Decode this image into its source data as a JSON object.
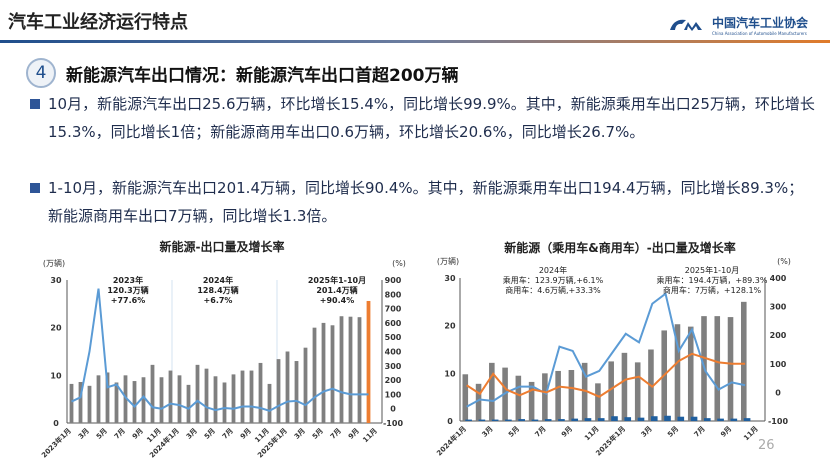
{
  "header": {
    "title": "汽车工业经济运行特点",
    "logo_cn": "中国汽车工业协会",
    "logo_en": "China Association of Automobile Manufacturers",
    "logo_mark": "CM"
  },
  "section": {
    "number": "4",
    "heading": "新能源汽车出口情况：新能源汽车出口首超200万辆"
  },
  "bullets": [
    "10月，新能源汽车出口25.6万辆，环比增长15.4%，同比增长99.9%。其中，新能源乘用车出口25万辆，环比增长15.3%，同比增长1倍；新能源商用车出口0.6万辆，环比增长20.6%，同比增长26.7%。",
    "1-10月，新能源汽车出口201.4万辆，同比增长90.4%。其中，新能源乘用车出口194.4万辆，同比增长89.3%；新能源商用车出口7万辆，同比增长1.3倍。"
  ],
  "page_number": "26",
  "colors": {
    "bar": "#7f7f7f",
    "highlight_bar": "#ed7d31",
    "line_blue": "#5b9bd5",
    "line_orange": "#ed7d31",
    "small_bar": "#1f5f9f",
    "accent": "#1f4e8c"
  },
  "chart_data": [
    {
      "type": "bar+line",
      "title": "新能源-出口量及增长率",
      "ylabel": "(万辆)",
      "y2label": "(%)",
      "ylim": [
        0,
        30
      ],
      "y2lim": [
        -100,
        900
      ],
      "yticks": [
        "0",
        "10",
        "20",
        "30"
      ],
      "y2ticks": [
        "-100",
        "0",
        "100",
        "200",
        "300",
        "400",
        "500",
        "600",
        "700",
        "800",
        "900"
      ],
      "xticks": [
        "2023年1月",
        "3月",
        "5月",
        "7月",
        "9月",
        "11月",
        "2024年1月",
        "3月",
        "5月",
        "7月",
        "9月",
        "11月",
        "2025年1月",
        "3月",
        "5月",
        "7月",
        "9月",
        "11月"
      ],
      "categories_start": "2023年1月",
      "categories_end": "2025年10月",
      "series": [
        {
          "type": "bar",
          "axis": "left",
          "values": [
            8.2,
            8.6,
            7.8,
            10,
            10.6,
            8.5,
            10,
            8.8,
            9.6,
            12.2,
            9.6,
            11,
            10,
            8,
            12.2,
            11.4,
            9.8,
            8.5,
            10.2,
            11,
            11,
            12.6,
            8.2,
            13.4,
            15,
            13,
            15.8,
            20,
            21,
            20.5,
            22.4,
            22.3,
            22.2,
            25.6
          ]
        },
        {
          "type": "line",
          "axis": "right",
          "values": [
            50,
            80,
            400,
            840,
            150,
            170,
            80,
            15,
            85,
            10,
            0,
            35,
            25,
            0,
            55,
            10,
            -10,
            5,
            0,
            15,
            15,
            5,
            -15,
            20,
            50,
            55,
            25,
            80,
            120,
            140,
            115,
            100,
            100,
            100
          ]
        }
      ],
      "annotations": [
        {
          "lines": [
            "2023年",
            "120.3万辆",
            "+77.6%"
          ]
        },
        {
          "lines": [
            "2024年",
            "128.4万辆",
            "+6.7%"
          ]
        },
        {
          "lines": [
            "2025年1-10月",
            "201.4万辆",
            "+90.4%"
          ]
        }
      ]
    },
    {
      "type": "bar+line",
      "title": "新能源（乘用车&商用车）-出口量及增长率",
      "ylabel": "(万辆)",
      "y2label": "(%)",
      "ylim": [
        0,
        30
      ],
      "y2lim": [
        -100,
        400
      ],
      "yticks": [
        "0",
        "10",
        "20",
        "30"
      ],
      "y2ticks": [
        "-100",
        "0",
        "100",
        "200",
        "300",
        "400"
      ],
      "xticks": [
        "2024年1月",
        "3月",
        "5月",
        "7月",
        "9月",
        "11月",
        "2025年1月",
        "3月",
        "5月",
        "7月",
        "9月",
        "11月"
      ],
      "categories_start": "2024年1月",
      "categories_end": "2025年10月",
      "series": [
        {
          "type": "bar",
          "axis": "left",
          "values": [
            9.8,
            7.8,
            12.2,
            11.2,
            9.5,
            8.2,
            10,
            10.5,
            10.7,
            12.2,
            7.9,
            12.5,
            14.3,
            12.3,
            15,
            19,
            20.3,
            19.8,
            22,
            22,
            21.8,
            25
          ]
        },
        {
          "type": "bar",
          "axis": "left",
          "values": [
            0.3,
            0.3,
            0.3,
            0.3,
            0.4,
            0.3,
            0.4,
            0.4,
            0.5,
            0.6,
            0.6,
            1,
            0.8,
            0.7,
            1,
            1.1,
            0.9,
            0.9,
            0.6,
            0.5,
            0.5,
            0.6
          ]
        },
        {
          "type": "line",
          "axis": "right",
          "color": "blue",
          "values": [
            -50,
            -25,
            -30,
            0,
            20,
            20,
            -5,
            160,
            145,
            55,
            75,
            140,
            205,
            175,
            310,
            345,
            145,
            220,
            75,
            10,
            35,
            25
          ]
        },
        {
          "type": "line",
          "axis": "right",
          "color": "orange",
          "values": [
            25,
            -5,
            65,
            10,
            -10,
            10,
            0,
            20,
            15,
            5,
            -15,
            15,
            45,
            55,
            20,
            65,
            110,
            135,
            120,
            105,
            100,
            100
          ]
        }
      ],
      "annotations": [
        {
          "lines": [
            "2024年",
            "乘用车：123.9万辆,+6.1%",
            "商用车：4.6万辆,+33.3%"
          ]
        },
        {
          "lines": [
            "2025年1-10月",
            "乘用车：194.4万辆，+89.3%",
            "商用车：7万辆，+128.1%"
          ]
        }
      ]
    }
  ]
}
